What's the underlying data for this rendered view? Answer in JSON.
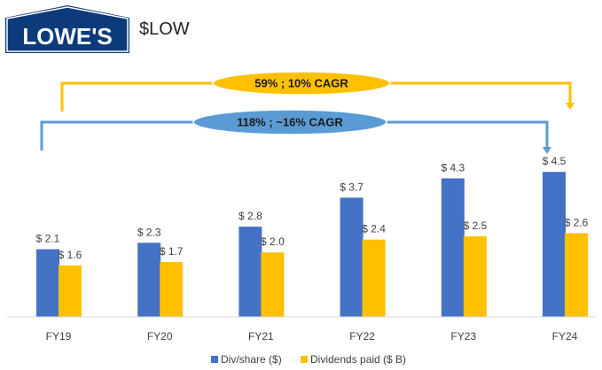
{
  "brand": {
    "logo_text": "LOWE'S",
    "ticker": "$LOW"
  },
  "colors": {
    "logo_bg": "#0C3A7A",
    "div_share": "#4472C4",
    "div_paid": "#FFC000",
    "bracket_blue": "#5B9BD5"
  },
  "chart_data": {
    "type": "bar",
    "categories": [
      "FY19",
      "FY20",
      "FY21",
      "FY22",
      "FY23",
      "FY24"
    ],
    "series": [
      {
        "name": "Div/share ($)",
        "values": [
          2.1,
          2.3,
          2.8,
          3.7,
          4.3,
          4.5
        ],
        "labels": [
          "$ 2.1",
          "$ 2.3",
          "$ 2.8",
          "$ 3.7",
          "$ 4.3",
          "$ 4.5"
        ]
      },
      {
        "name": "Dividends paid ($ B)",
        "values": [
          1.6,
          1.7,
          2.0,
          2.4,
          2.5,
          2.6
        ],
        "labels": [
          "$ 1.6",
          "$ 1.7",
          "$ 2.0",
          "$ 2.4",
          "$ 2.5",
          "$ 2.6"
        ]
      }
    ],
    "ylim": [
      0,
      5
    ],
    "legend": "bottom",
    "annotations": [
      {
        "text": "59% ; 10% CAGR",
        "series": "Dividends paid ($ B)",
        "from": "FY19",
        "to": "FY24"
      },
      {
        "text": "118% ; ~16% CAGR",
        "series": "Div/share ($)",
        "from": "FY19",
        "to": "FY24"
      }
    ]
  }
}
